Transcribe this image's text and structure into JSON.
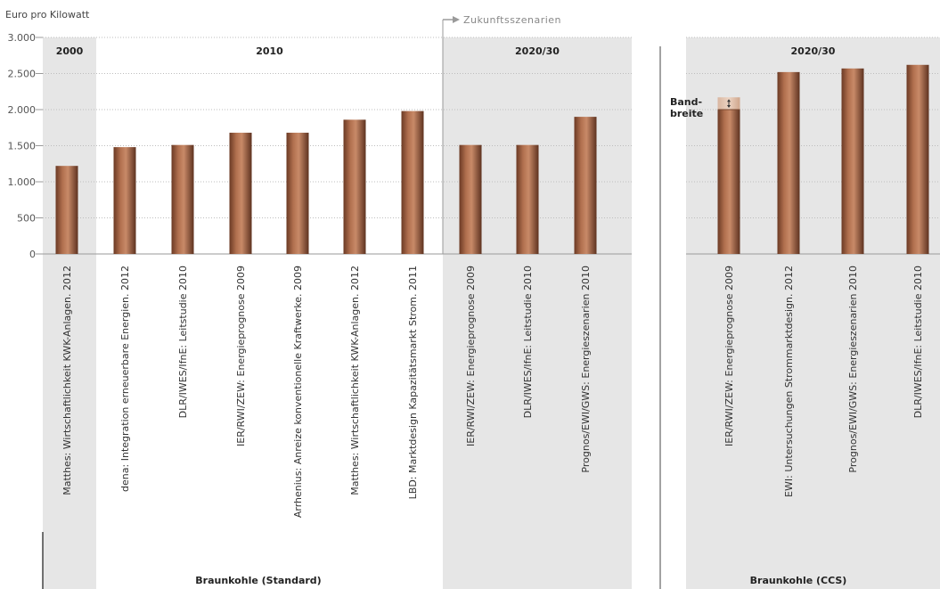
{
  "chart_data": [
    {
      "type": "bar",
      "title": "",
      "ylabel": "Euro pro Kilowatt",
      "ylim": [
        0,
        3000
      ],
      "yticks": [
        0,
        500,
        1000,
        1500,
        2000,
        2500,
        3000
      ],
      "ytick_labels": [
        "0",
        "500",
        "1.000",
        "1.500",
        "2.000",
        "2.500",
        "3.000"
      ],
      "grid": true,
      "group_label": "Braunkohle (Standard)",
      "periods": [
        {
          "label": "2000",
          "shaded": true
        },
        {
          "label": "2010",
          "shaded": false
        },
        {
          "label": "2020/30",
          "shaded": true
        }
      ],
      "scenario_label": "Zukunftsszenarien",
      "categories": [
        "Matthes: Wirtschaftlichkeit KWK-Anlagen. 2012",
        "dena: Integration erneuerbare Energien. 2012",
        "DLR/IWES/IfnE: Leitstudie 2010",
        "IER/RWI/ZEW: Energieprognose 2009",
        "Arrhenius: Anreize konventionelle Kraftwerke. 2009",
        "Matthes: Wirtschaftlichkeit KWK-Anlagen. 2012",
        "LBD: Marktdesign Kapazitätsmarkt Strom. 2011",
        "IER/RWI/ZEW: Energieprognose 2009",
        "DLR/IWES/IfnE: Leitstudie 2010",
        "Prognos/EWI/GWS: Energieszenarien 2010"
      ],
      "bar_period": [
        0,
        1,
        1,
        1,
        1,
        1,
        1,
        2,
        2,
        2
      ],
      "values": [
        1220,
        1480,
        1510,
        1680,
        1680,
        1860,
        1980,
        1510,
        1510,
        1900
      ]
    },
    {
      "type": "bar",
      "title": "",
      "ylim": [
        0,
        3000
      ],
      "grid": true,
      "group_label": "Braunkohle (CCS)",
      "periods": [
        {
          "label": "2020/30",
          "shaded": true
        }
      ],
      "categories": [
        "IER/RWI/ZEW: Energieprognose 2009",
        "EWI: Untersuchungen Strommarktdesign. 2012",
        "Prognos/EWI/GWS: Energieszenarien 2010",
        "DLR/IWES/IfnE: Leitstudie 2010"
      ],
      "values": [
        2000,
        2520,
        2570,
        2620
      ],
      "range_band": {
        "bar_index": 0,
        "low": 2000,
        "high": 2170,
        "label_lines": [
          "Band-",
          "breite"
        ]
      }
    }
  ]
}
